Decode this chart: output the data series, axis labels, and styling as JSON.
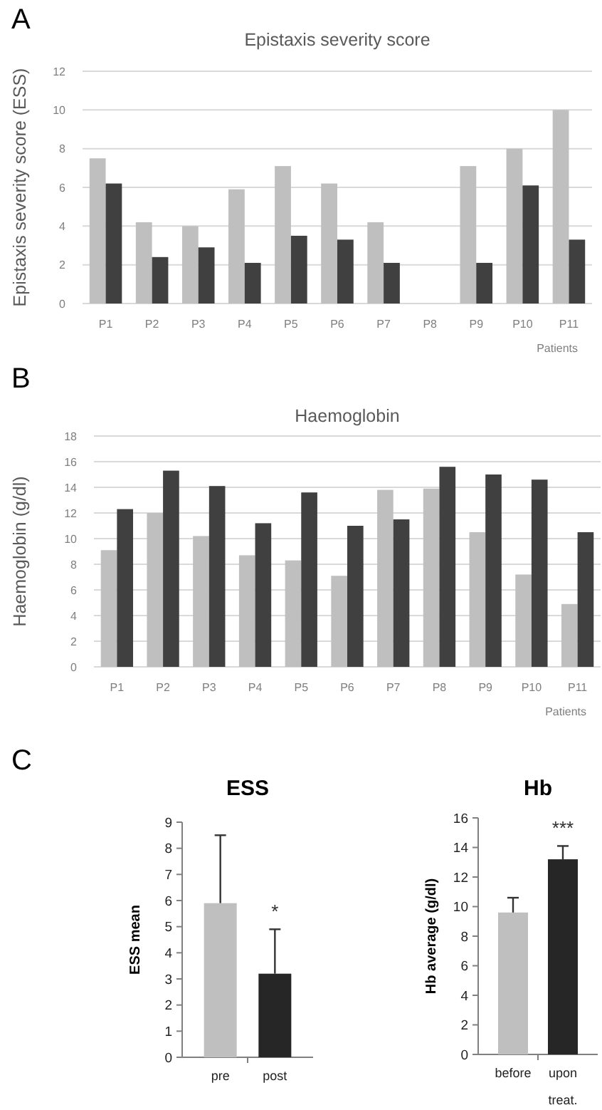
{
  "chart_data": [
    {
      "type": "bar",
      "title": "Epistaxis severity score",
      "xlabel": "Patients",
      "ylabel": "Epistaxis severity score (ESS)",
      "annotations": [
        "A"
      ],
      "categories": [
        "P1",
        "P2",
        "P3",
        "P4",
        "P5",
        "P6",
        "P7",
        "P8",
        "P9",
        "P10",
        "P11"
      ],
      "series": [
        {
          "color": "#bfbfbf",
          "values": [
            7.5,
            4.2,
            4.0,
            5.9,
            7.1,
            6.2,
            4.2,
            null,
            7.1,
            8.0,
            10.0
          ]
        },
        {
          "color": "#404040",
          "values": [
            6.2,
            2.4,
            2.9,
            2.1,
            3.5,
            3.3,
            2.1,
            null,
            2.1,
            6.1,
            3.3
          ]
        }
      ],
      "ylim": [
        0,
        12
      ],
      "yticks": [
        0,
        2,
        4,
        6,
        8,
        10,
        12
      ],
      "grid": "y"
    },
    {
      "type": "bar",
      "title": "Haemoglobin",
      "xlabel": "Patients",
      "ylabel": "Haemoglobin (g/dl)",
      "annotations": [
        "B"
      ],
      "categories": [
        "P1",
        "P2",
        "P3",
        "P4",
        "P5",
        "P6",
        "P7",
        "P8",
        "P9",
        "P10",
        "P11"
      ],
      "series": [
        {
          "color": "#bfbfbf",
          "values": [
            9.1,
            12.0,
            10.2,
            8.7,
            8.3,
            7.1,
            13.8,
            13.9,
            10.5,
            7.2,
            4.9
          ]
        },
        {
          "color": "#404040",
          "values": [
            12.3,
            15.3,
            14.1,
            11.2,
            13.6,
            11.0,
            11.5,
            15.6,
            15.0,
            14.6,
            10.5
          ]
        }
      ],
      "ylim": [
        0,
        18
      ],
      "yticks": [
        0,
        2,
        4,
        6,
        8,
        10,
        12,
        14,
        16,
        18
      ],
      "grid": "y"
    },
    {
      "type": "bar",
      "title": "ESS",
      "ylabel": "ESS mean",
      "annotations": [
        "C",
        "*"
      ],
      "categories": [
        "pre",
        "post"
      ],
      "values": [
        5.9,
        3.2
      ],
      "colors": [
        "#bfbfbf",
        "#262626"
      ],
      "errors": [
        [
          5.9,
          8.5
        ],
        [
          3.2,
          4.9
        ]
      ],
      "ylim": [
        0,
        9
      ],
      "yticks": [
        0,
        1,
        2,
        3,
        4,
        5,
        6,
        7,
        8,
        9
      ],
      "grid": false
    },
    {
      "type": "bar",
      "title": "Hb",
      "ylabel": "Hb average (g/dl)",
      "annotations": [
        "***"
      ],
      "categories": [
        "before",
        "upon treat."
      ],
      "values": [
        9.6,
        13.2
      ],
      "colors": [
        "#bfbfbf",
        "#262626"
      ],
      "errors": [
        [
          9.6,
          10.6
        ],
        [
          13.2,
          14.1
        ]
      ],
      "ylim": [
        0,
        16
      ],
      "yticks": [
        0,
        2,
        4,
        6,
        8,
        10,
        12,
        14,
        16
      ],
      "grid": false
    }
  ]
}
